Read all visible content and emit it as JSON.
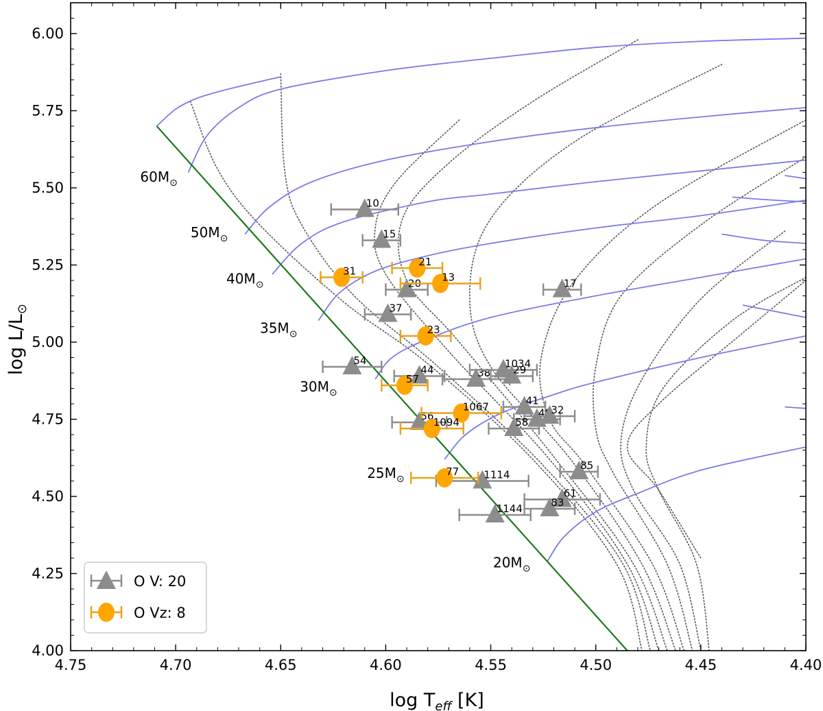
{
  "chart_data": {
    "type": "scatter",
    "xlabel": "log T",
    "xlabel_sub": "eff",
    "xlabel_unit": " [K]",
    "ylabel": "log L/L",
    "ylabel_sub": "⊙",
    "xlim": [
      4.75,
      4.4
    ],
    "ylim": [
      4.0,
      6.1
    ],
    "xticks": [
      "4.75",
      "4.70",
      "4.65",
      "4.60",
      "4.55",
      "4.50",
      "4.45",
      "4.40"
    ],
    "yticks": [
      "4.00",
      "4.25",
      "4.50",
      "4.75",
      "5.00",
      "5.25",
      "5.50",
      "5.75",
      "6.00"
    ],
    "colors": {
      "ov": "#8c8c8c",
      "ovz": "#ffa500",
      "ovz_err": "#e8a21a",
      "track": "#7b7be8",
      "zams": "#1a7a1a",
      "isochrone": "#555555"
    },
    "zams": [
      [
        4.709,
        5.7
      ],
      [
        4.485,
        4.0
      ]
    ],
    "tracks": [
      {
        "mass": "60",
        "label": "60M",
        "label_at": [
          4.708,
          5.52
        ],
        "points": [
          [
            4.694,
            5.55
          ],
          [
            4.685,
            5.67
          ],
          [
            4.67,
            5.76
          ],
          [
            4.65,
            5.82
          ],
          [
            4.6,
            5.88
          ],
          [
            4.55,
            5.92
          ],
          [
            4.5,
            5.955
          ],
          [
            4.45,
            5.975
          ],
          [
            4.4,
            5.985
          ]
        ]
      },
      {
        "mass": "60b",
        "label": "",
        "label_at": null,
        "points": [
          [
            4.709,
            5.7
          ],
          [
            4.7,
            5.755
          ],
          [
            4.69,
            5.79
          ],
          [
            4.675,
            5.82
          ],
          [
            4.65,
            5.86
          ]
        ]
      },
      {
        "mass": "50",
        "label": "50M",
        "label_at": [
          4.684,
          5.34
        ],
        "points": [
          [
            4.667,
            5.35
          ],
          [
            4.655,
            5.44
          ],
          [
            4.635,
            5.52
          ],
          [
            4.6,
            5.59
          ],
          [
            4.55,
            5.65
          ],
          [
            4.5,
            5.695
          ],
          [
            4.45,
            5.73
          ],
          [
            4.4,
            5.76
          ]
        ]
      },
      {
        "mass": "40",
        "label": "40M",
        "label_at": [
          4.667,
          5.19
        ],
        "points": [
          [
            4.654,
            5.22
          ],
          [
            4.64,
            5.32
          ],
          [
            4.62,
            5.39
          ],
          [
            4.58,
            5.455
          ],
          [
            4.55,
            5.48
          ],
          [
            4.5,
            5.52
          ],
          [
            4.45,
            5.555
          ],
          [
            4.4,
            5.59
          ]
        ]
      },
      {
        "mass": "35",
        "label": "35M",
        "label_at": [
          4.651,
          5.03
        ],
        "points": [
          [
            4.632,
            5.07
          ],
          [
            4.622,
            5.16
          ],
          [
            4.605,
            5.23
          ],
          [
            4.58,
            5.28
          ],
          [
            4.55,
            5.32
          ],
          [
            4.5,
            5.37
          ],
          [
            4.45,
            5.41
          ],
          [
            4.4,
            5.46
          ]
        ]
      },
      {
        "mass": "30",
        "label": "30M",
        "label_at": [
          4.632,
          4.84
        ],
        "points": [
          [
            4.605,
            4.88
          ],
          [
            4.597,
            4.95
          ],
          [
            4.58,
            5.01
          ],
          [
            4.55,
            5.08
          ],
          [
            4.5,
            5.15
          ],
          [
            4.45,
            5.21
          ],
          [
            4.4,
            5.27
          ]
        ]
      },
      {
        "mass": "25",
        "label": "25M",
        "label_at": [
          4.6,
          4.56
        ],
        "points": [
          [
            4.572,
            4.62
          ],
          [
            4.562,
            4.7
          ],
          [
            4.545,
            4.77
          ],
          [
            4.52,
            4.83
          ],
          [
            4.5,
            4.87
          ],
          [
            4.45,
            4.95
          ],
          [
            4.4,
            5.02
          ]
        ]
      },
      {
        "mass": "20",
        "label": "20M",
        "label_at": [
          4.54,
          4.27
        ],
        "points": [
          [
            4.523,
            4.29
          ],
          [
            4.515,
            4.37
          ],
          [
            4.5,
            4.45
          ],
          [
            4.48,
            4.51
          ],
          [
            4.45,
            4.585
          ],
          [
            4.4,
            4.66
          ]
        ]
      }
    ],
    "isochrones": [
      [
        [
          4.693,
          5.78
        ],
        [
          4.68,
          5.56
        ],
        [
          4.66,
          5.38
        ],
        [
          4.62,
          5.13
        ],
        [
          4.58,
          4.93
        ],
        [
          4.53,
          4.62
        ],
        [
          4.49,
          4.28
        ],
        [
          4.478,
          4.0
        ]
      ],
      [
        [
          4.65,
          5.87
        ],
        [
          4.648,
          5.55
        ],
        [
          4.64,
          5.38
        ],
        [
          4.615,
          5.15
        ],
        [
          4.575,
          4.92
        ],
        [
          4.525,
          4.6
        ],
        [
          4.487,
          4.28
        ],
        [
          4.474,
          4.0
        ]
      ],
      [
        [
          4.565,
          5.72
        ],
        [
          4.595,
          5.52
        ],
        [
          4.605,
          5.37
        ],
        [
          4.6,
          5.22
        ],
        [
          4.57,
          4.97
        ],
        [
          4.522,
          4.62
        ],
        [
          4.485,
          4.28
        ],
        [
          4.47,
          4.0
        ]
      ],
      [
        [
          4.48,
          5.98
        ],
        [
          4.53,
          5.78
        ],
        [
          4.57,
          5.58
        ],
        [
          4.592,
          5.4
        ],
        [
          4.59,
          5.2
        ],
        [
          4.565,
          5.0
        ],
        [
          4.519,
          4.62
        ],
        [
          4.482,
          4.28
        ],
        [
          4.466,
          4.0
        ]
      ],
      [
        [
          4.44,
          5.9
        ],
        [
          4.51,
          5.65
        ],
        [
          4.55,
          5.4
        ],
        [
          4.56,
          5.15
        ],
        [
          4.55,
          4.92
        ],
        [
          4.512,
          4.62
        ],
        [
          4.478,
          4.28
        ],
        [
          4.462,
          4.0
        ]
      ],
      [
        [
          4.4,
          5.72
        ],
        [
          4.47,
          5.45
        ],
        [
          4.51,
          5.2
        ],
        [
          4.526,
          4.95
        ],
        [
          4.522,
          4.75
        ],
        [
          4.505,
          4.6
        ],
        [
          4.473,
          4.28
        ],
        [
          4.458,
          4.0
        ]
      ],
      [
        [
          4.4,
          5.6
        ],
        [
          4.45,
          5.38
        ],
        [
          4.488,
          5.15
        ],
        [
          4.5,
          4.92
        ],
        [
          4.5,
          4.72
        ],
        [
          4.492,
          4.58
        ],
        [
          4.466,
          4.28
        ],
        [
          4.454,
          4.0
        ]
      ],
      [
        [
          4.41,
          5.36
        ],
        [
          4.45,
          5.14
        ],
        [
          4.478,
          4.88
        ],
        [
          4.488,
          4.68
        ],
        [
          4.482,
          4.52
        ],
        [
          4.46,
          4.28
        ],
        [
          4.45,
          4.0
        ]
      ],
      [
        [
          4.4,
          5.21
        ],
        [
          4.435,
          5.07
        ],
        [
          4.468,
          4.85
        ],
        [
          4.476,
          4.66
        ],
        [
          4.47,
          4.52
        ],
        [
          4.452,
          4.28
        ],
        [
          4.446,
          4.0
        ]
      ],
      [
        [
          4.4,
          5.2
        ],
        [
          4.43,
          5.03
        ],
        [
          4.47,
          4.8
        ],
        [
          4.485,
          4.66
        ],
        [
          4.47,
          4.52
        ],
        [
          4.45,
          4.3
        ]
      ]
    ],
    "series": [
      {
        "name": "O V: 20",
        "marker": "triangle",
        "points": [
          {
            "label": "10",
            "x": 4.61,
            "y": 5.43,
            "xerr": 0.016
          },
          {
            "label": "15",
            "x": 4.602,
            "y": 5.33,
            "xerr": 0.009
          },
          {
            "label": "20",
            "x": 4.59,
            "y": 5.17,
            "xerr": 0.01
          },
          {
            "label": "37",
            "x": 4.599,
            "y": 5.09,
            "xerr": 0.011
          },
          {
            "label": "17",
            "x": 4.516,
            "y": 5.17,
            "xerr": 0.009
          },
          {
            "label": "54",
            "x": 4.616,
            "y": 4.92,
            "xerr": 0.014
          },
          {
            "label": "44",
            "x": 4.584,
            "y": 4.89,
            "xerr": 0.012
          },
          {
            "label": "38",
            "x": 4.557,
            "y": 4.88,
            "xerr": 0.016
          },
          {
            "label": "1034",
            "x": 4.544,
            "y": 4.91,
            "xerr": 0.016
          },
          {
            "label": "29",
            "x": 4.54,
            "y": 4.89,
            "xerr": 0.01
          },
          {
            "label": "41",
            "x": 4.534,
            "y": 4.79,
            "xerr": 0.01
          },
          {
            "label": "48",
            "x": 4.528,
            "y": 4.75,
            "xerr": 0.011
          },
          {
            "label": "32",
            "x": 4.522,
            "y": 4.76,
            "xerr": 0.012
          },
          {
            "label": "56",
            "x": 4.584,
            "y": 4.74,
            "xerr": 0.013
          },
          {
            "label": "58",
            "x": 4.539,
            "y": 4.72,
            "xerr": 0.012
          },
          {
            "label": "85",
            "x": 4.508,
            "y": 4.58,
            "xerr": 0.009
          },
          {
            "label": "1114",
            "x": 4.554,
            "y": 4.55,
            "xerr": 0.022
          },
          {
            "label": "61",
            "x": 4.516,
            "y": 4.49,
            "xerr": 0.018
          },
          {
            "label": "83",
            "x": 4.522,
            "y": 4.46,
            "xerr": 0.012
          },
          {
            "label": "1144",
            "x": 4.548,
            "y": 4.44,
            "xerr": 0.017
          }
        ]
      },
      {
        "name": "O Vz: 8",
        "marker": "circle",
        "points": [
          {
            "label": "31",
            "x": 4.621,
            "y": 5.21,
            "xerr": 0.01
          },
          {
            "label": "21",
            "x": 4.585,
            "y": 5.24,
            "xerr": 0.012
          },
          {
            "label": "13",
            "x": 4.574,
            "y": 5.19,
            "xerr": 0.019
          },
          {
            "label": "23",
            "x": 4.581,
            "y": 5.02,
            "xerr": 0.012
          },
          {
            "label": "57",
            "x": 4.591,
            "y": 4.86,
            "xerr": 0.011
          },
          {
            "label": "1067",
            "x": 4.564,
            "y": 4.77,
            "xerr": 0.019
          },
          {
            "label": "1094",
            "x": 4.578,
            "y": 4.72,
            "xerr": 0.015
          },
          {
            "label": "77",
            "x": 4.572,
            "y": 4.56,
            "xerr": 0.016
          }
        ]
      }
    ],
    "legend": {
      "position": "bottom-left",
      "entries": [
        "O V: 20",
        "O Vz: 8"
      ]
    }
  }
}
